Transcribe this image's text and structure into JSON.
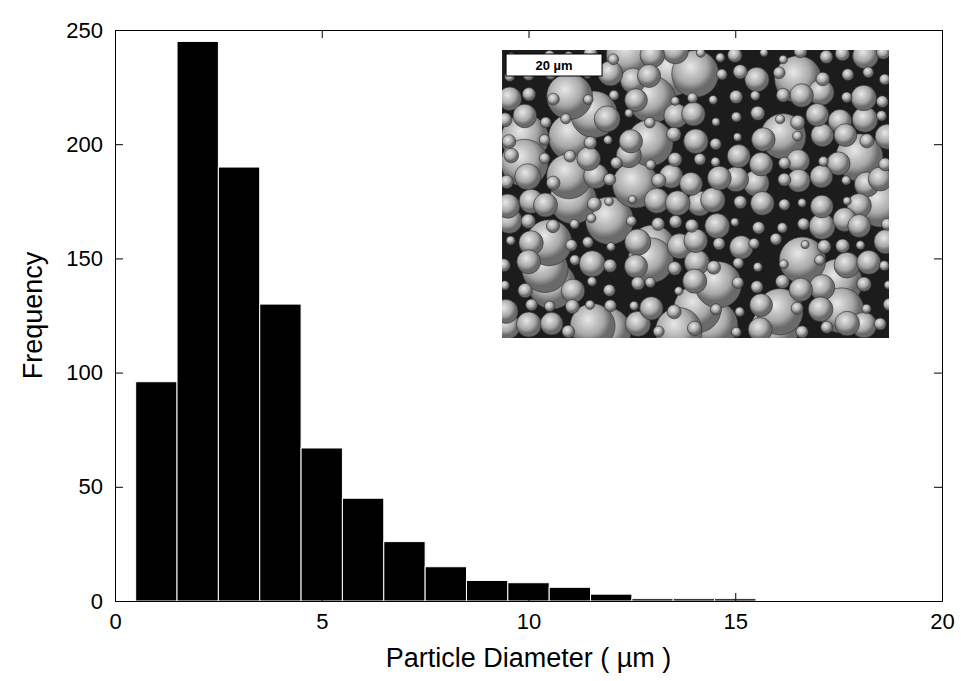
{
  "chart_data": {
    "type": "histogram",
    "x_label": "Particle Diameter ( µm )",
    "y_label": "Frequency",
    "bins": [
      0.5,
      1.5,
      2.5,
      3.5,
      4.5,
      5.5,
      6.5,
      7.5,
      8.5,
      9.5,
      10.5,
      11.5,
      12.5,
      13.5,
      14.5,
      15.5
    ],
    "values": [
      96,
      245,
      190,
      130,
      67,
      45,
      26,
      15,
      9,
      8,
      6,
      3,
      1,
      1,
      1
    ],
    "color": "#000000",
    "xlim": [
      0,
      20
    ],
    "xticks": [
      0,
      5,
      10,
      15,
      20
    ],
    "ylim": [
      0,
      250
    ],
    "yticks": [
      0,
      50,
      100,
      150,
      200,
      250
    ],
    "grid": false,
    "annotations": [
      "20 µm"
    ]
  }
}
